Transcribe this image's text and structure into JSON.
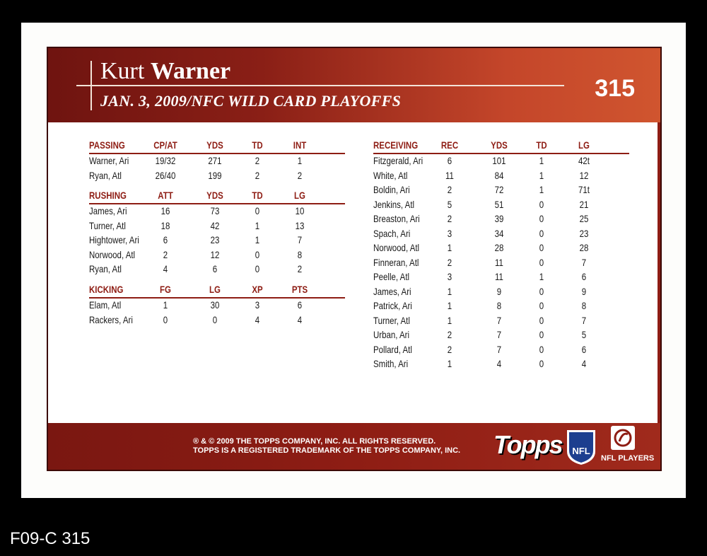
{
  "player": {
    "first": "Kurt",
    "last": "Warner",
    "game": "JAN. 3, 2009/NFC WILD CARD PLAYOFFS",
    "card_number": "315"
  },
  "passing": {
    "headers": [
      "PASSING",
      "CP/AT",
      "YDS",
      "TD",
      "INT"
    ],
    "rows": [
      [
        "Warner, Ari",
        "19/32",
        "271",
        "2",
        "1"
      ],
      [
        "Ryan, Atl",
        "26/40",
        "199",
        "2",
        "2"
      ]
    ]
  },
  "rushing": {
    "headers": [
      "RUSHING",
      "ATT",
      "YDS",
      "TD",
      "LG"
    ],
    "rows": [
      [
        "James, Ari",
        "16",
        "73",
        "0",
        "10"
      ],
      [
        "Turner, Atl",
        "18",
        "42",
        "1",
        "13"
      ],
      [
        "Hightower, Ari",
        "6",
        "23",
        "1",
        "7"
      ],
      [
        "Norwood, Atl",
        "2",
        "12",
        "0",
        "8"
      ],
      [
        "Ryan, Atl",
        "4",
        "6",
        "0",
        "2"
      ]
    ]
  },
  "kicking": {
    "headers": [
      "KICKING",
      "FG",
      "LG",
      "XP",
      "PTS"
    ],
    "rows": [
      [
        "Elam, Atl",
        "1",
        "30",
        "3",
        "6"
      ],
      [
        "Rackers, Ari",
        "0",
        "0",
        "4",
        "4"
      ]
    ]
  },
  "receiving": {
    "headers": [
      "RECEIVING",
      "REC",
      "YDS",
      "TD",
      "LG"
    ],
    "rows": [
      [
        "Fitzgerald, Ari",
        "6",
        "101",
        "1",
        "42t"
      ],
      [
        "White, Atl",
        "11",
        "84",
        "1",
        "12"
      ],
      [
        "Boldin, Ari",
        "2",
        "72",
        "1",
        "71t"
      ],
      [
        "Jenkins, Atl",
        "5",
        "51",
        "0",
        "21"
      ],
      [
        "Breaston, Ari",
        "2",
        "39",
        "0",
        "25"
      ],
      [
        "Spach, Ari",
        "3",
        "34",
        "0",
        "23"
      ],
      [
        "Norwood, Atl",
        "1",
        "28",
        "0",
        "28"
      ],
      [
        "Finneran, Atl",
        "2",
        "11",
        "0",
        "7"
      ],
      [
        "Peelle, Atl",
        "3",
        "11",
        "1",
        "6"
      ],
      [
        "James, Ari",
        "1",
        "9",
        "0",
        "9"
      ],
      [
        "Patrick, Ari",
        "1",
        "8",
        "0",
        "8"
      ],
      [
        "Turner, Atl",
        "1",
        "7",
        "0",
        "7"
      ],
      [
        "Urban, Ari",
        "2",
        "7",
        "0",
        "5"
      ],
      [
        "Pollard, Atl",
        "2",
        "7",
        "0",
        "6"
      ],
      [
        "Smith, Ari",
        "1",
        "4",
        "0",
        "4"
      ]
    ]
  },
  "footer": {
    "copyright_line1": "® & © 2009 THE TOPPS COMPANY, INC. ALL RIGHTS RESERVED.",
    "copyright_line2": "TOPPS IS A REGISTERED TRADEMARK OF THE TOPPS COMPANY, INC.",
    "topps_logo": "Topps",
    "nfl_logo": "NFL",
    "nfl_players": "NFL PLAYERS"
  },
  "catalog_label": "F09-C 315",
  "colors": {
    "accent": "#8e1d14",
    "background": "#000000",
    "card": "#fdfdfb"
  }
}
